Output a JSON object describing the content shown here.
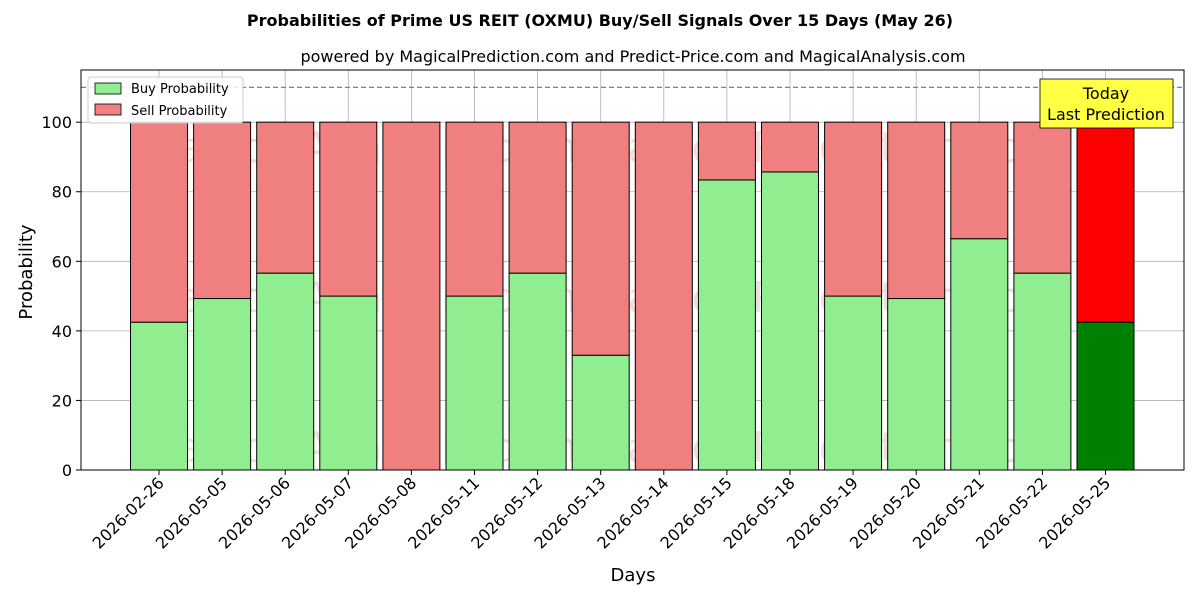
{
  "chart_data": {
    "type": "bar",
    "stacked": true,
    "title": "Probabilities of Prime US REIT (OXMU) Buy/Sell Signals Over 15 Days (May 26)",
    "subtitle": "powered by MagicalPrediction.com and Predict-Price.com and MagicalAnalysis.com",
    "xlabel": "Days",
    "ylabel": "Probability",
    "ylim": [
      0,
      115
    ],
    "yticks": [
      0,
      20,
      40,
      60,
      80,
      100
    ],
    "grid": true,
    "legend_position": "top-left",
    "reference_line": 110,
    "categories": [
      "2026-02-26",
      "2026-05-05",
      "2026-05-06",
      "2026-05-07",
      "2026-05-08",
      "2026-05-11",
      "2026-05-12",
      "2026-05-13",
      "2026-05-14",
      "2026-05-15",
      "2026-05-18",
      "2026-05-19",
      "2026-05-20",
      "2026-05-21",
      "2026-05-22",
      "2026-05-25"
    ],
    "series": [
      {
        "name": "Buy Probability",
        "color": "#90ee90",
        "highlight_color": "#008000",
        "values": [
          42.5,
          49.3,
          56.6,
          50.0,
          0.0,
          50.0,
          56.6,
          33.0,
          0.0,
          83.4,
          85.7,
          50.0,
          49.3,
          66.5,
          56.6,
          42.5
        ]
      },
      {
        "name": "Sell Probability",
        "color": "#f08080",
        "highlight_color": "#ff0000",
        "values": [
          57.5,
          50.7,
          43.4,
          50.0,
          100.0,
          50.0,
          43.4,
          67.0,
          100.0,
          16.6,
          14.3,
          50.0,
          50.7,
          33.5,
          43.4,
          57.5
        ]
      }
    ],
    "highlight_index": 15,
    "annotation": {
      "lines": [
        "Today",
        "Last Prediction"
      ],
      "background": "#ffff44"
    },
    "watermark": "MagicalAnalysis.com    MagicalPrediction.com"
  }
}
